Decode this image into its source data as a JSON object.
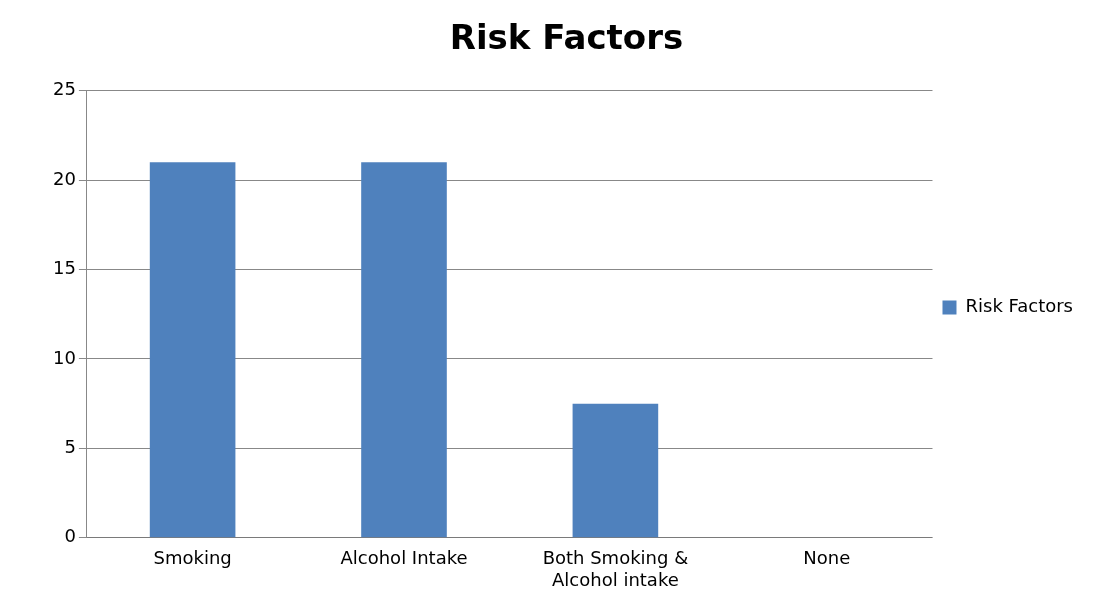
{
  "chart_data": {
    "type": "bar",
    "title": "Risk Factors",
    "categories": [
      "Smoking",
      "Alcohol Intake",
      "Both Smoking & Alcohol intake",
      "None"
    ],
    "series": [
      {
        "name": "Risk Factors",
        "color": "#4f81bd",
        "values": [
          21,
          21,
          7.5,
          0
        ]
      }
    ],
    "ylim": [
      0,
      25
    ],
    "yticks": [
      0,
      5,
      10,
      15,
      20,
      25
    ],
    "grid": "y",
    "legend": "right"
  }
}
